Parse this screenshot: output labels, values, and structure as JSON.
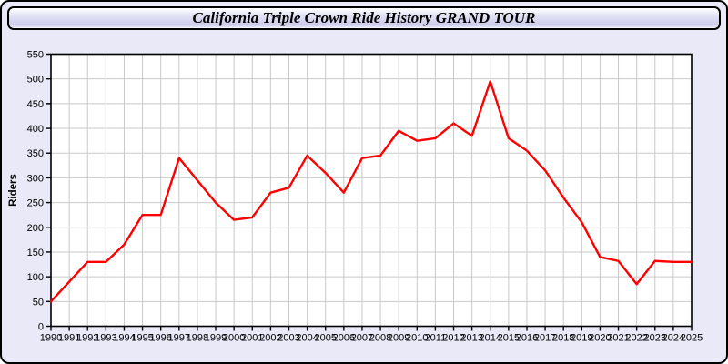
{
  "title": "California Triple Crown Ride History GRAND TOUR",
  "colors": {
    "page_background": "#e9e9f8",
    "frame_border": "#000000",
    "plot_background": "#ffffff",
    "gridline": "#c9c9c9",
    "axis": "#000000",
    "tick_label": "#000000",
    "series_line": "#ff0000"
  },
  "chart_data": {
    "type": "line",
    "title": "California Triple Crown Ride History GRAND TOUR",
    "xlabel": "",
    "ylabel": "Riders",
    "x": [
      1990,
      1991,
      1992,
      1993,
      1994,
      1995,
      1996,
      1997,
      1998,
      1999,
      2000,
      2001,
      2002,
      2003,
      2004,
      2005,
      2006,
      2007,
      2008,
      2009,
      2010,
      2011,
      2012,
      2013,
      2014,
      2015,
      2016,
      2017,
      2018,
      2019,
      2020,
      2021,
      2022,
      2023,
      2024,
      2025
    ],
    "series": [
      {
        "name": "Riders",
        "color": "#ff0000",
        "values": [
          50,
          90,
          130,
          130,
          165,
          225,
          225,
          340,
          295,
          250,
          215,
          220,
          270,
          280,
          345,
          310,
          270,
          340,
          345,
          395,
          375,
          380,
          410,
          385,
          495,
          380,
          355,
          315,
          260,
          210,
          140,
          132,
          85,
          132,
          130,
          130
        ]
      }
    ],
    "ylim": [
      0,
      550
    ],
    "ytick_step": 50,
    "grid": true,
    "legend": "none"
  }
}
